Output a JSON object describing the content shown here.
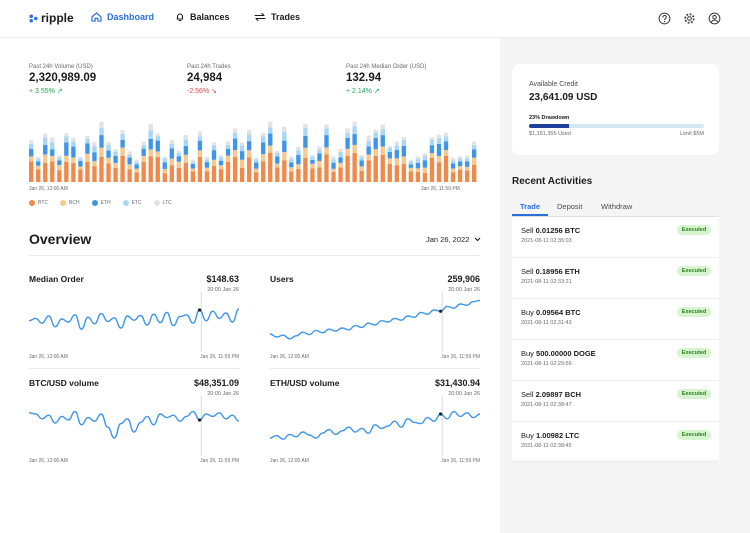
{
  "app": {
    "name": "ripple",
    "nav": [
      {
        "label": "Dashboard",
        "icon": "home-icon",
        "active": true
      },
      {
        "label": "Balances",
        "icon": "bell-icon",
        "active": false
      },
      {
        "label": "Trades",
        "icon": "swap-icon",
        "active": false
      }
    ],
    "top_icons": [
      "help-icon",
      "settings-icon",
      "user-icon"
    ]
  },
  "stats": [
    {
      "label": "Past 24h Volume (USD)",
      "value": "2,320,989.09",
      "change": "+ 3.55%",
      "direction": "up"
    },
    {
      "label": "Past 24h Trades",
      "value": "24,984",
      "change": "-2.56%",
      "direction": "down"
    },
    {
      "label": "Past 24h Median Order (USD)",
      "value": "132.94",
      "change": "+ 2.14%",
      "direction": "up"
    }
  ],
  "volume_chart": {
    "start_label": "Jan 26, 12:00 AM",
    "end_label": "Jan 26, 11:59 PM",
    "legend": [
      {
        "name": "BTC",
        "color": "#ef8a4c"
      },
      {
        "name": "BCH",
        "color": "#f5c98f"
      },
      {
        "name": "ETH",
        "color": "#3f96e8"
      },
      {
        "name": "ETC",
        "color": "#a9d7f5"
      },
      {
        "name": "LTC",
        "color": "#e3e3e3"
      }
    ]
  },
  "overview": {
    "title": "Overview",
    "date": "Jan 26, 2022",
    "panels": [
      {
        "title": "Median Order",
        "value": "$148.63",
        "sub": "20:00 Jan 26",
        "start": "Jan 26, 12:00 AM",
        "end": "Jan 26, 11:59 PM",
        "values": [
          52,
          56,
          48,
          60,
          42,
          55,
          50,
          62,
          38,
          58,
          47,
          64,
          51,
          57,
          40,
          60,
          53,
          61,
          45,
          63,
          49,
          66,
          44,
          59,
          62,
          48,
          70,
          52,
          68,
          56,
          65,
          50,
          72
        ]
      },
      {
        "title": "Users",
        "value": "259,906",
        "sub": "20:00 Jan 26",
        "start": "Jan 26, 12:00 AM",
        "end": "Jan 26, 11:59 PM",
        "values": [
          30,
          25,
          28,
          22,
          27,
          33,
          29,
          36,
          32,
          38,
          35,
          40,
          37,
          44,
          41,
          48,
          45,
          52,
          50,
          56,
          53,
          60,
          58,
          66,
          63,
          70,
          68,
          76,
          73,
          80,
          78,
          84,
          86
        ]
      },
      {
        "title": "BTC/USD volume",
        "value": "$48,351.09",
        "sub": "20:00 Jan 26",
        "start": "Jan 26, 12:00 AM",
        "end": "Jan 26, 11:59 PM",
        "values": [
          72,
          70,
          62,
          68,
          55,
          66,
          60,
          74,
          52,
          64,
          58,
          70,
          48,
          30,
          54,
          62,
          40,
          56,
          66,
          52,
          70,
          64,
          68,
          58,
          66,
          74,
          60,
          70,
          66,
          72,
          62,
          68,
          58
        ]
      },
      {
        "title": "ETH/USD volume",
        "value": "$31,430.94",
        "sub": "20:00 Jan 26",
        "start": "Jan 26, 12:00 AM",
        "end": "Jan 26, 11:59 PM",
        "values": [
          30,
          34,
          28,
          36,
          32,
          40,
          35,
          30,
          38,
          44,
          36,
          42,
          48,
          40,
          46,
          38,
          52,
          46,
          50,
          58,
          48,
          62,
          56,
          54,
          64,
          58,
          70,
          62,
          74,
          66,
          72,
          64,
          70
        ]
      }
    ]
  },
  "credit": {
    "label": "Available Credit",
    "value": "23,641.09 USD",
    "drawdown_label": "23% Drawdown",
    "drawdown_fraction": 0.23,
    "used": "$1,151,355 Used",
    "limit": "Limit $5M"
  },
  "activities": {
    "title": "Recent Activities",
    "tabs": [
      "Trade",
      "Deposit",
      "Withdraw"
    ],
    "items": [
      {
        "side": "Sell",
        "amount": "0.01256 BTC",
        "time": "2021-08-11 02:35:03",
        "status": "Executed"
      },
      {
        "side": "Sell",
        "amount": "0.18956 ETH",
        "time": "2021-08-11 02:33:21",
        "status": "Executed"
      },
      {
        "side": "Buy",
        "amount": "0.09564 BTC",
        "time": "2021-08-11 02:31:43",
        "status": "Executed"
      },
      {
        "side": "Buy",
        "amount": "500.00000 DOGE",
        "time": "2021-08-11 02:29:56",
        "status": "Executed"
      },
      {
        "side": "Sell",
        "amount": "2.09897 BCH",
        "time": "2021-08-11 02:38:47",
        "status": "Executed"
      },
      {
        "side": "Buy",
        "amount": "1.00982 LTC",
        "time": "2021-08-11 02:38:45",
        "status": "Executed"
      }
    ]
  }
}
